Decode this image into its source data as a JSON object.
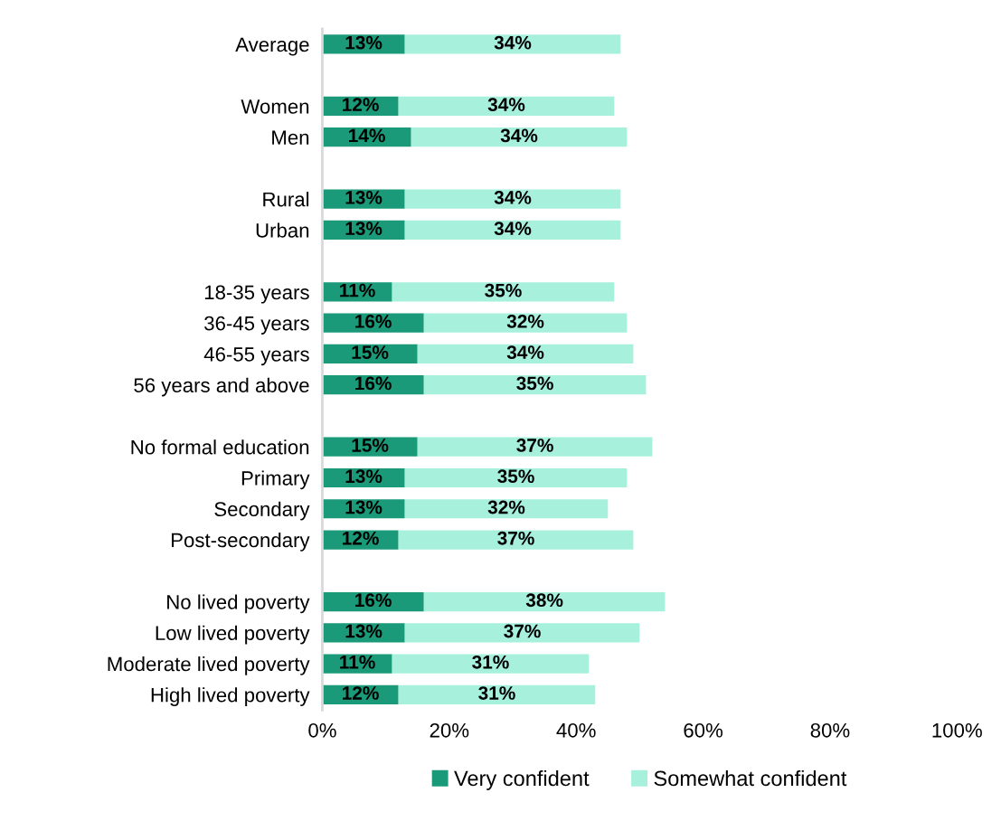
{
  "chart_data": {
    "type": "bar",
    "orientation": "horizontal",
    "stacked": true,
    "categories": [
      "Average",
      null,
      "Women",
      "Men",
      null,
      "Rural",
      "Urban",
      null,
      "18-35 years",
      "36-45 years",
      "46-55 years",
      "56 years and above",
      null,
      "No formal education",
      "Primary",
      "Secondary",
      "Post-secondary",
      null,
      "No lived poverty",
      "Low lived poverty",
      "Moderate lived poverty",
      "High lived poverty"
    ],
    "series": [
      {
        "name": "Very confident",
        "color": "#1a9a78",
        "values": [
          13,
          null,
          12,
          14,
          null,
          13,
          13,
          null,
          11,
          16,
          15,
          16,
          null,
          15,
          13,
          13,
          12,
          null,
          16,
          13,
          11,
          12
        ],
        "value_labels": [
          "13%",
          null,
          "12%",
          "14%",
          null,
          "13%",
          "13%",
          null,
          "11%",
          "16%",
          "15%",
          "16%",
          null,
          "15%",
          "13%",
          "13%",
          "12%",
          null,
          "16%",
          "13%",
          "11%",
          "12%"
        ]
      },
      {
        "name": "Somewhat confident",
        "color": "#a6f0dc",
        "values": [
          34,
          null,
          34,
          34,
          null,
          34,
          34,
          null,
          35,
          32,
          34,
          35,
          null,
          37,
          35,
          32,
          37,
          null,
          38,
          37,
          31,
          31
        ],
        "value_labels": [
          "34%",
          null,
          "34%",
          "34%",
          null,
          "34%",
          "34%",
          null,
          "35%",
          "32%",
          "34%",
          "35%",
          null,
          "37%",
          "35%",
          "32%",
          "37%",
          null,
          "38%",
          "37%",
          "31%",
          "31%"
        ]
      }
    ],
    "xlim": [
      0,
      100
    ],
    "xticks": [
      {
        "value": 0,
        "label": "0%"
      },
      {
        "value": 20,
        "label": "20%"
      },
      {
        "value": 40,
        "label": "40%"
      },
      {
        "value": 60,
        "label": "60%"
      },
      {
        "value": 80,
        "label": "80%"
      },
      {
        "value": 100,
        "label": "100%"
      }
    ],
    "grid": false,
    "legend": "bottom"
  }
}
